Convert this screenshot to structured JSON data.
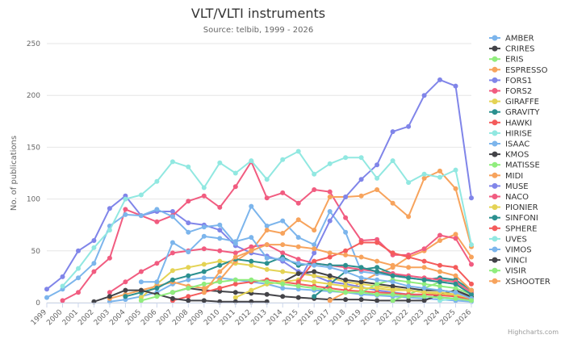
{
  "credits": "Highcharts.com",
  "chart_data": {
    "type": "line",
    "title": "VLT/VLTI instruments",
    "subtitle": "Source: telbib, 1999 - 2026",
    "xlabel": "",
    "ylabel": "No. of publications",
    "x": [
      1999,
      2000,
      2001,
      2002,
      2003,
      2004,
      2005,
      2006,
      2007,
      2008,
      2009,
      2010,
      2011,
      2012,
      2013,
      2014,
      2015,
      2016,
      2017,
      2018,
      2019,
      2020,
      2021,
      2022,
      2023,
      2024,
      2025,
      2026
    ],
    "ylim": [
      0,
      250
    ],
    "yticks": [
      0,
      50,
      100,
      150,
      200,
      250
    ],
    "grid": true,
    "legend": "right",
    "series": [
      {
        "name": "AMBER",
        "color": "#7cb5ec",
        "values": [
          null,
          null,
          null,
          null,
          1,
          3,
          6,
          10,
          18,
          22,
          24,
          24,
          22,
          20,
          18,
          14,
          13,
          12,
          11,
          10,
          8,
          7,
          6,
          5,
          4,
          3,
          2,
          1
        ]
      },
      {
        "name": "CRIRES",
        "color": "#434348",
        "values": [
          null,
          null,
          null,
          null,
          null,
          null,
          null,
          null,
          10,
          14,
          12,
          11,
          10,
          9,
          8,
          6,
          5,
          4,
          3,
          3,
          3,
          2,
          2,
          2,
          2,
          8,
          12,
          6
        ]
      },
      {
        "name": "ERIS",
        "color": "#90ed7d",
        "values": [
          null,
          null,
          null,
          null,
          null,
          null,
          null,
          null,
          null,
          null,
          null,
          null,
          null,
          null,
          null,
          null,
          null,
          null,
          null,
          null,
          null,
          null,
          2,
          8,
          14,
          20,
          22,
          12
        ]
      },
      {
        "name": "ESPRESSO",
        "color": "#f7a35c",
        "values": [
          null,
          null,
          null,
          null,
          null,
          null,
          null,
          null,
          null,
          null,
          null,
          null,
          null,
          null,
          null,
          null,
          null,
          null,
          2,
          10,
          20,
          28,
          34,
          44,
          50,
          60,
          66,
          44
        ]
      },
      {
        "name": "FORS1",
        "color": "#8085e9",
        "values": [
          13,
          25,
          50,
          60,
          91,
          103,
          84,
          88,
          88,
          77,
          75,
          70,
          55,
          48,
          45,
          40,
          30,
          26,
          20,
          18,
          15,
          12,
          10,
          8,
          6,
          5,
          4,
          2
        ]
      },
      {
        "name": "FORS2",
        "color": "#f15c80",
        "values": [
          null,
          2,
          10,
          30,
          43,
          90,
          84,
          78,
          84,
          98,
          103,
          92,
          112,
          136,
          101,
          106,
          96,
          109,
          107,
          82,
          60,
          61,
          46,
          46,
          52,
          65,
          62,
          37
        ]
      },
      {
        "name": "GIRAFFE",
        "color": "#e4d354",
        "values": [
          null,
          null,
          null,
          null,
          null,
          null,
          5,
          18,
          31,
          34,
          37,
          40,
          38,
          36,
          32,
          30,
          28,
          26,
          24,
          20,
          18,
          16,
          14,
          12,
          10,
          8,
          7,
          3
        ]
      },
      {
        "name": "GRAVITY",
        "color": "#2b908f",
        "values": [
          null,
          null,
          null,
          null,
          null,
          null,
          null,
          null,
          null,
          null,
          null,
          null,
          null,
          null,
          null,
          null,
          null,
          6,
          18,
          30,
          32,
          34,
          28,
          24,
          22,
          24,
          22,
          12
        ]
      },
      {
        "name": "HAWKI",
        "color": "#f45b5b",
        "values": [
          null,
          null,
          null,
          null,
          null,
          null,
          null,
          null,
          2,
          6,
          10,
          14,
          18,
          20,
          22,
          20,
          18,
          16,
          14,
          12,
          11,
          10,
          9,
          8,
          8,
          7,
          6,
          3
        ]
      },
      {
        "name": "HIRISE",
        "color": "#91e8e1",
        "values": [
          null,
          null,
          null,
          null,
          null,
          null,
          null,
          null,
          null,
          null,
          null,
          null,
          null,
          null,
          null,
          null,
          null,
          null,
          null,
          null,
          null,
          null,
          null,
          null,
          null,
          2,
          4,
          2
        ]
      },
      {
        "name": "ISAAC",
        "color": "#7cb5ec",
        "values": [
          5,
          13,
          24,
          38,
          74,
          85,
          84,
          90,
          83,
          68,
          73,
          75,
          57,
          93,
          74,
          79,
          63,
          56,
          88,
          68,
          30,
          28,
          26,
          24,
          22,
          20,
          18,
          8
        ]
      },
      {
        "name": "KMOS",
        "color": "#434348",
        "values": [
          null,
          null,
          null,
          null,
          null,
          null,
          null,
          null,
          null,
          null,
          null,
          null,
          null,
          null,
          null,
          20,
          28,
          30,
          26,
          22,
          20,
          18,
          16,
          14,
          12,
          12,
          10,
          5
        ]
      },
      {
        "name": "MATISSE",
        "color": "#90ed7d",
        "values": [
          null,
          null,
          null,
          null,
          null,
          null,
          null,
          null,
          null,
          null,
          null,
          null,
          null,
          null,
          null,
          null,
          null,
          null,
          null,
          null,
          10,
          18,
          22,
          20,
          18,
          16,
          14,
          8
        ]
      },
      {
        "name": "MIDI",
        "color": "#f7a35c",
        "values": [
          null,
          null,
          null,
          null,
          4,
          8,
          12,
          16,
          20,
          16,
          14,
          22,
          40,
          50,
          70,
          67,
          80,
          70,
          102,
          102,
          103,
          109,
          96,
          83,
          120,
          127,
          110,
          54
        ]
      },
      {
        "name": "MUSE",
        "color": "#8085e9",
        "values": [
          null,
          null,
          null,
          null,
          null,
          null,
          null,
          null,
          null,
          null,
          null,
          null,
          null,
          null,
          null,
          null,
          20,
          48,
          79,
          102,
          119,
          133,
          165,
          170,
          200,
          215,
          209,
          101
        ]
      },
      {
        "name": "NACO",
        "color": "#f15c80",
        "values": [
          null,
          null,
          null,
          null,
          10,
          20,
          30,
          38,
          48,
          50,
          52,
          50,
          48,
          54,
          56,
          48,
          42,
          38,
          36,
          34,
          32,
          30,
          28,
          26,
          24,
          22,
          20,
          10
        ]
      },
      {
        "name": "PIONIER",
        "color": "#e4d354",
        "values": [
          null,
          null,
          null,
          null,
          null,
          null,
          null,
          null,
          null,
          null,
          null,
          null,
          5,
          12,
          18,
          20,
          22,
          20,
          18,
          16,
          14,
          14,
          12,
          12,
          10,
          10,
          8,
          4
        ]
      },
      {
        "name": "SINFONI",
        "color": "#2b908f",
        "values": [
          null,
          null,
          null,
          null,
          null,
          6,
          10,
          14,
          22,
          26,
          30,
          36,
          42,
          40,
          38,
          44,
          36,
          38,
          36,
          36,
          34,
          30,
          26,
          24,
          22,
          20,
          18,
          8
        ]
      },
      {
        "name": "SPHERE",
        "color": "#f45b5b",
        "values": [
          null,
          null,
          null,
          null,
          null,
          null,
          null,
          null,
          null,
          null,
          null,
          null,
          null,
          null,
          null,
          null,
          20,
          40,
          44,
          50,
          58,
          58,
          48,
          44,
          40,
          36,
          34,
          18
        ]
      },
      {
        "name": "UVES",
        "color": "#91e8e1",
        "values": [
          null,
          16,
          33,
          53,
          70,
          100,
          104,
          117,
          136,
          131,
          111,
          135,
          125,
          137,
          119,
          138,
          146,
          124,
          134,
          140,
          140,
          120,
          137,
          116,
          124,
          121,
          128,
          56
        ]
      },
      {
        "name": "VIMOS",
        "color": "#7cb5ec",
        "values": [
          null,
          null,
          null,
          null,
          null,
          null,
          20,
          20,
          58,
          49,
          64,
          62,
          59,
          63,
          43,
          42,
          38,
          36,
          34,
          30,
          24,
          22,
          20,
          16,
          14,
          12,
          10,
          4
        ]
      },
      {
        "name": "VINCI",
        "color": "#434348",
        "values": [
          null,
          null,
          null,
          1,
          6,
          12,
          12,
          8,
          4,
          2,
          2,
          1,
          1,
          1,
          1,
          null,
          null,
          null,
          null,
          null,
          null,
          null,
          null,
          null,
          null,
          null,
          null,
          null
        ]
      },
      {
        "name": "VISIR",
        "color": "#90ed7d",
        "values": [
          null,
          null,
          null,
          null,
          null,
          null,
          2,
          6,
          10,
          14,
          18,
          20,
          22,
          22,
          20,
          18,
          16,
          14,
          12,
          10,
          10,
          8,
          8,
          6,
          6,
          5,
          4,
          2
        ]
      },
      {
        "name": "XSHOOTER",
        "color": "#f7a35c",
        "values": [
          null,
          null,
          null,
          null,
          null,
          null,
          null,
          null,
          null,
          null,
          10,
          30,
          44,
          50,
          56,
          56,
          54,
          52,
          48,
          46,
          44,
          40,
          36,
          34,
          34,
          30,
          26,
          12
        ]
      }
    ]
  }
}
